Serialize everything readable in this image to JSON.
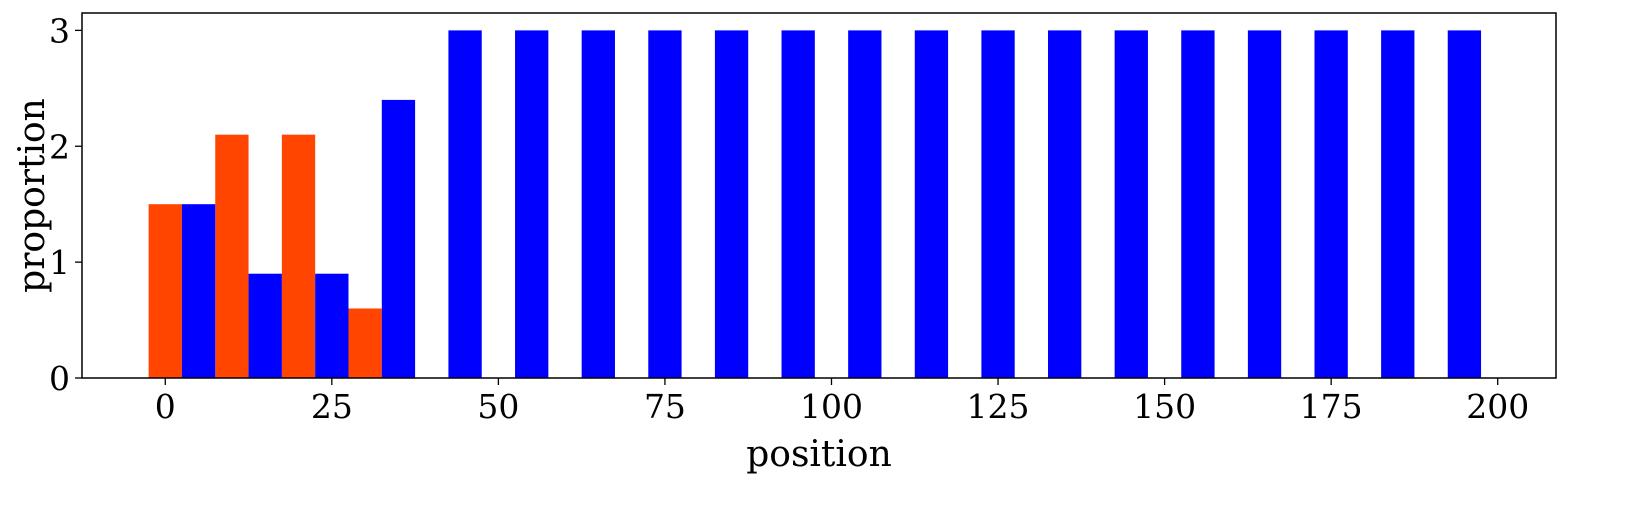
{
  "chart_data": {
    "type": "bar",
    "xlabel": "position",
    "ylabel": "proportion",
    "xlim": [
      -12.5,
      208.75
    ],
    "ylim": [
      0,
      3.15
    ],
    "bar_width": 5,
    "xticks": [
      0,
      25,
      50,
      75,
      100,
      125,
      150,
      175,
      200
    ],
    "yticks": [
      0,
      1,
      2,
      3
    ],
    "grid": false,
    "legend": "none",
    "colors": {
      "orange": "#ff4500",
      "blue": "#0000ff"
    },
    "series": [
      {
        "color": "orange",
        "x": [
          0,
          10,
          20,
          30
        ],
        "values": [
          1.5,
          2.1,
          2.1,
          0.6
        ]
      },
      {
        "color": "blue",
        "x": [
          5,
          15,
          25,
          35,
          45,
          55,
          65,
          75,
          85,
          95,
          105,
          115,
          125,
          135,
          145,
          155,
          165,
          175,
          185,
          195
        ],
        "values": [
          1.5,
          0.9,
          0.9,
          2.4,
          3,
          3,
          3,
          3,
          3,
          3,
          3,
          3,
          3,
          3,
          3,
          3,
          3,
          3,
          3,
          3
        ]
      }
    ]
  }
}
